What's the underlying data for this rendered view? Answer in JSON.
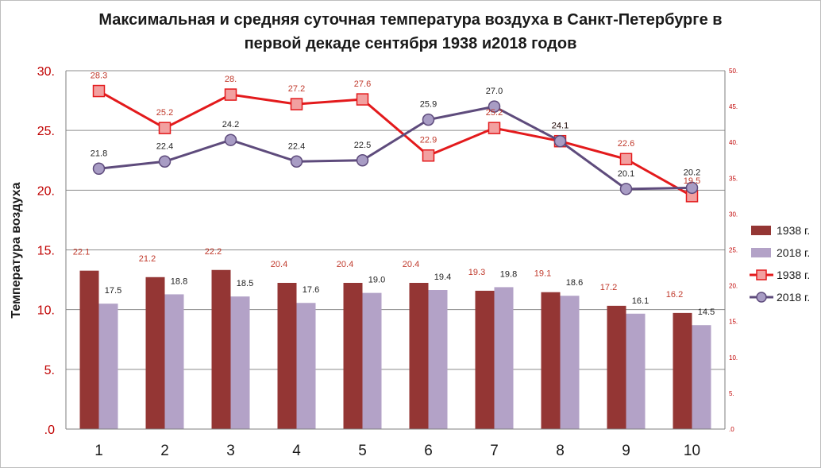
{
  "chart_data": {
    "type": "bar",
    "title_lines": [
      "Максимальная и средняя суточная температура воздуха в Санкт-Петербурге в",
      "первой декаде сентября 1938 и2018 годов"
    ],
    "ylabel": "Температура воздуха",
    "categories": [
      "1",
      "2",
      "3",
      "4",
      "5",
      "6",
      "7",
      "8",
      "9",
      "10"
    ],
    "left_axis": {
      "ylim": [
        0,
        30
      ],
      "ticks": [
        {
          "value": 0,
          "label": ".0"
        },
        {
          "value": 5,
          "label": "5."
        },
        {
          "value": 10,
          "label": "10."
        },
        {
          "value": 15,
          "label": "15."
        },
        {
          "value": 20,
          "label": "20."
        },
        {
          "value": 25,
          "label": "25."
        },
        {
          "value": 30,
          "label": "30."
        }
      ]
    },
    "right_axis": {
      "ylim": [
        0,
        50
      ],
      "ticks": [
        {
          "value": 0,
          "label": ".0"
        },
        {
          "value": 5,
          "label": "5."
        },
        {
          "value": 10,
          "label": "10."
        },
        {
          "value": 15,
          "label": "15."
        },
        {
          "value": 20,
          "label": "20."
        },
        {
          "value": 25,
          "label": "25."
        },
        {
          "value": 30,
          "label": "30."
        },
        {
          "value": 35,
          "label": "35."
        },
        {
          "value": 40,
          "label": "40."
        },
        {
          "value": 45,
          "label": "45."
        },
        {
          "value": 50,
          "label": "50."
        }
      ]
    },
    "bar_series": [
      {
        "name": "1938 г.",
        "color": "#943634",
        "label_color": "#c0392b",
        "axis": "right",
        "values": [
          22.1,
          21.2,
          22.2,
          20.4,
          20.4,
          20.4,
          19.3,
          19.1,
          17.2,
          16.2
        ],
        "labels": [
          "22.1",
          "21.2",
          "22.2",
          "20.4",
          "20.4",
          "20.4",
          "19.3",
          "19.1",
          "17.2",
          "16.2"
        ]
      },
      {
        "name": "2018 г.",
        "color": "#b3a2c7",
        "label_color": "#222222",
        "axis": "right",
        "values": [
          17.5,
          18.8,
          18.5,
          17.6,
          19.0,
          19.4,
          19.8,
          18.6,
          16.1,
          14.5
        ],
        "labels": [
          "17.5",
          "18.8",
          "18.5",
          "17.6",
          "19.0",
          "19.4",
          "19.8",
          "18.6",
          "16.1",
          "14.5"
        ]
      }
    ],
    "line_series": [
      {
        "name": "1938 г.",
        "color": "#e31a1c",
        "marker": "square",
        "marker_fill": "#f2a0a0",
        "label_color": "#c0392b",
        "axis": "left",
        "values": [
          28.3,
          25.2,
          28.0,
          27.2,
          27.6,
          22.9,
          25.2,
          24.1,
          22.6,
          19.5
        ],
        "labels": [
          "28.3",
          "25.2",
          "28.",
          "27.2",
          "27.6",
          "22.9",
          "25.2",
          "24.1",
          "22.6",
          "19.5"
        ]
      },
      {
        "name": "2018 г.",
        "color": "#5e4b7c",
        "marker": "circle",
        "marker_fill": "#a89cc4",
        "label_color": "#222222",
        "axis": "left",
        "values": [
          21.8,
          22.4,
          24.2,
          22.4,
          22.5,
          25.9,
          27.0,
          24.1,
          20.1,
          20.2
        ],
        "labels": [
          "21.8",
          "22.4",
          "24.2",
          "22.4",
          "22.5",
          "25.9",
          "27.0",
          "24.1",
          "20.1",
          "20.2"
        ]
      }
    ],
    "legend": {
      "placement": "right",
      "entries": [
        {
          "label": "1938 г.",
          "kind": "bar",
          "series": "bar_series.0"
        },
        {
          "label": "2018 г.",
          "kind": "bar",
          "series": "bar_series.1"
        },
        {
          "label": "1938 г.",
          "kind": "line",
          "series": "line_series.0"
        },
        {
          "label": "2018 г.",
          "kind": "line",
          "series": "line_series.1"
        }
      ]
    },
    "grid": "horizontal",
    "colors": {
      "left_tick_color": "#c00000",
      "right_tick_color": "#c00000",
      "grid_color": "#8c8c8c"
    }
  }
}
